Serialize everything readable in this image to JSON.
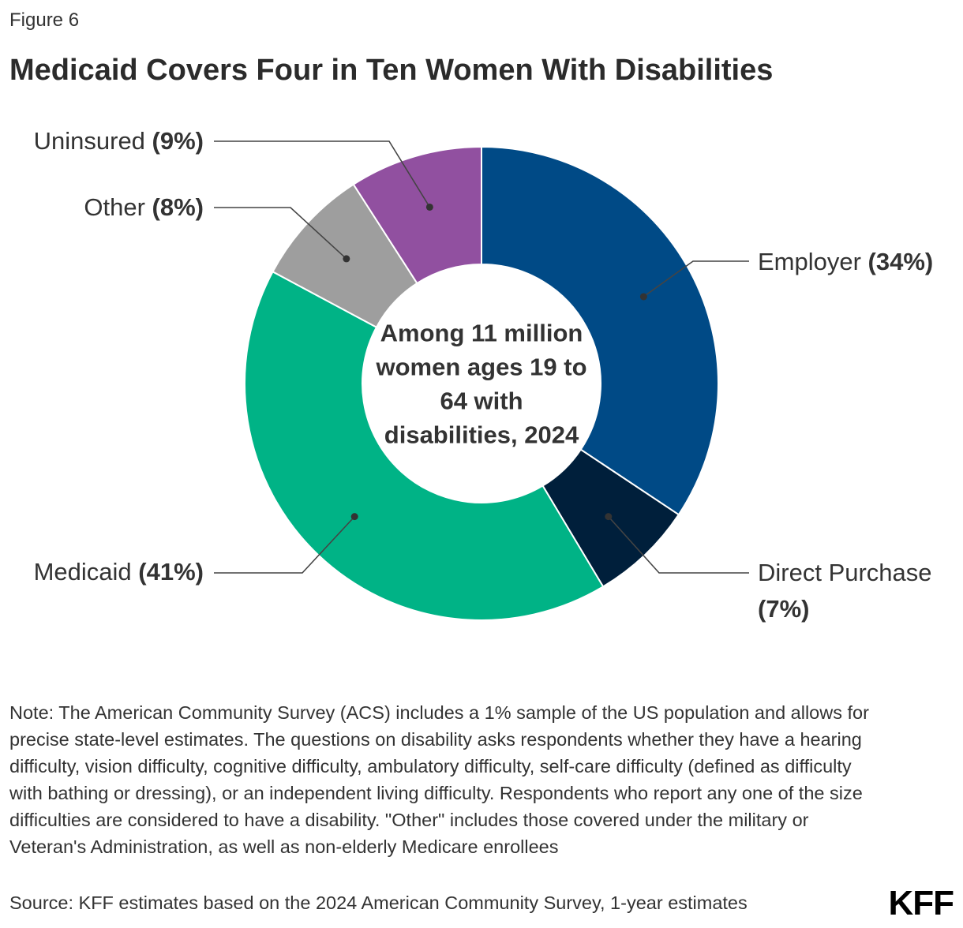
{
  "figure_label": "Figure 6",
  "note": "Note: The American Community Survey (ACS) includes a 1% sample of the US population and allows for precise state-level estimates. The questions on disability asks respondents whether they have a hearing difficulty, vision difficulty, cognitive difficulty, ambulatory difficulty, self-care difficulty (defined as difficulty with bathing or dressing), or an independent living difficulty. Respondents who report any one of the size difficulties are considered to have a disability. \"Other\" includes those covered under the military or Veteran's Administration, as well as non-elderly Medicare enrollees",
  "source": "Source: KFF estimates based on the 2024 American Community Survey, 1-year estimates",
  "logo_text": "KFF",
  "chart_data": {
    "type": "pie",
    "variant": "donut",
    "title": "Medicaid Covers Four in Ten Women With Disabilities",
    "center_label": [
      "Among 11 million",
      "women ages 19 to",
      "64 with",
      "disabilities, 2024"
    ],
    "unit": "%",
    "slices": [
      {
        "name": "Employer",
        "value": 34,
        "color": "#004a86",
        "label_lines": [
          [
            "Employer ",
            "(34%)"
          ]
        ],
        "label_side": "right"
      },
      {
        "name": "Direct Purchase",
        "value": 7,
        "color": "#001f3b",
        "label_lines": [
          [
            "Direct Purchase",
            ""
          ],
          [
            "",
            "(7%)"
          ]
        ],
        "label_side": "right"
      },
      {
        "name": "Medicaid",
        "value": 41,
        "color": "#00b386",
        "label_lines": [
          [
            "Medicaid ",
            "(41%)"
          ]
        ],
        "label_side": "left"
      },
      {
        "name": "Other",
        "value": 8,
        "color": "#9e9e9e",
        "label_lines": [
          [
            "Other ",
            "(8%)"
          ]
        ],
        "label_side": "left"
      },
      {
        "name": "Uninsured",
        "value": 9,
        "color": "#9150a0",
        "label_lines": [
          [
            "Uninsured ",
            "(9%)"
          ]
        ],
        "label_side": "left"
      }
    ],
    "legend": "none"
  }
}
